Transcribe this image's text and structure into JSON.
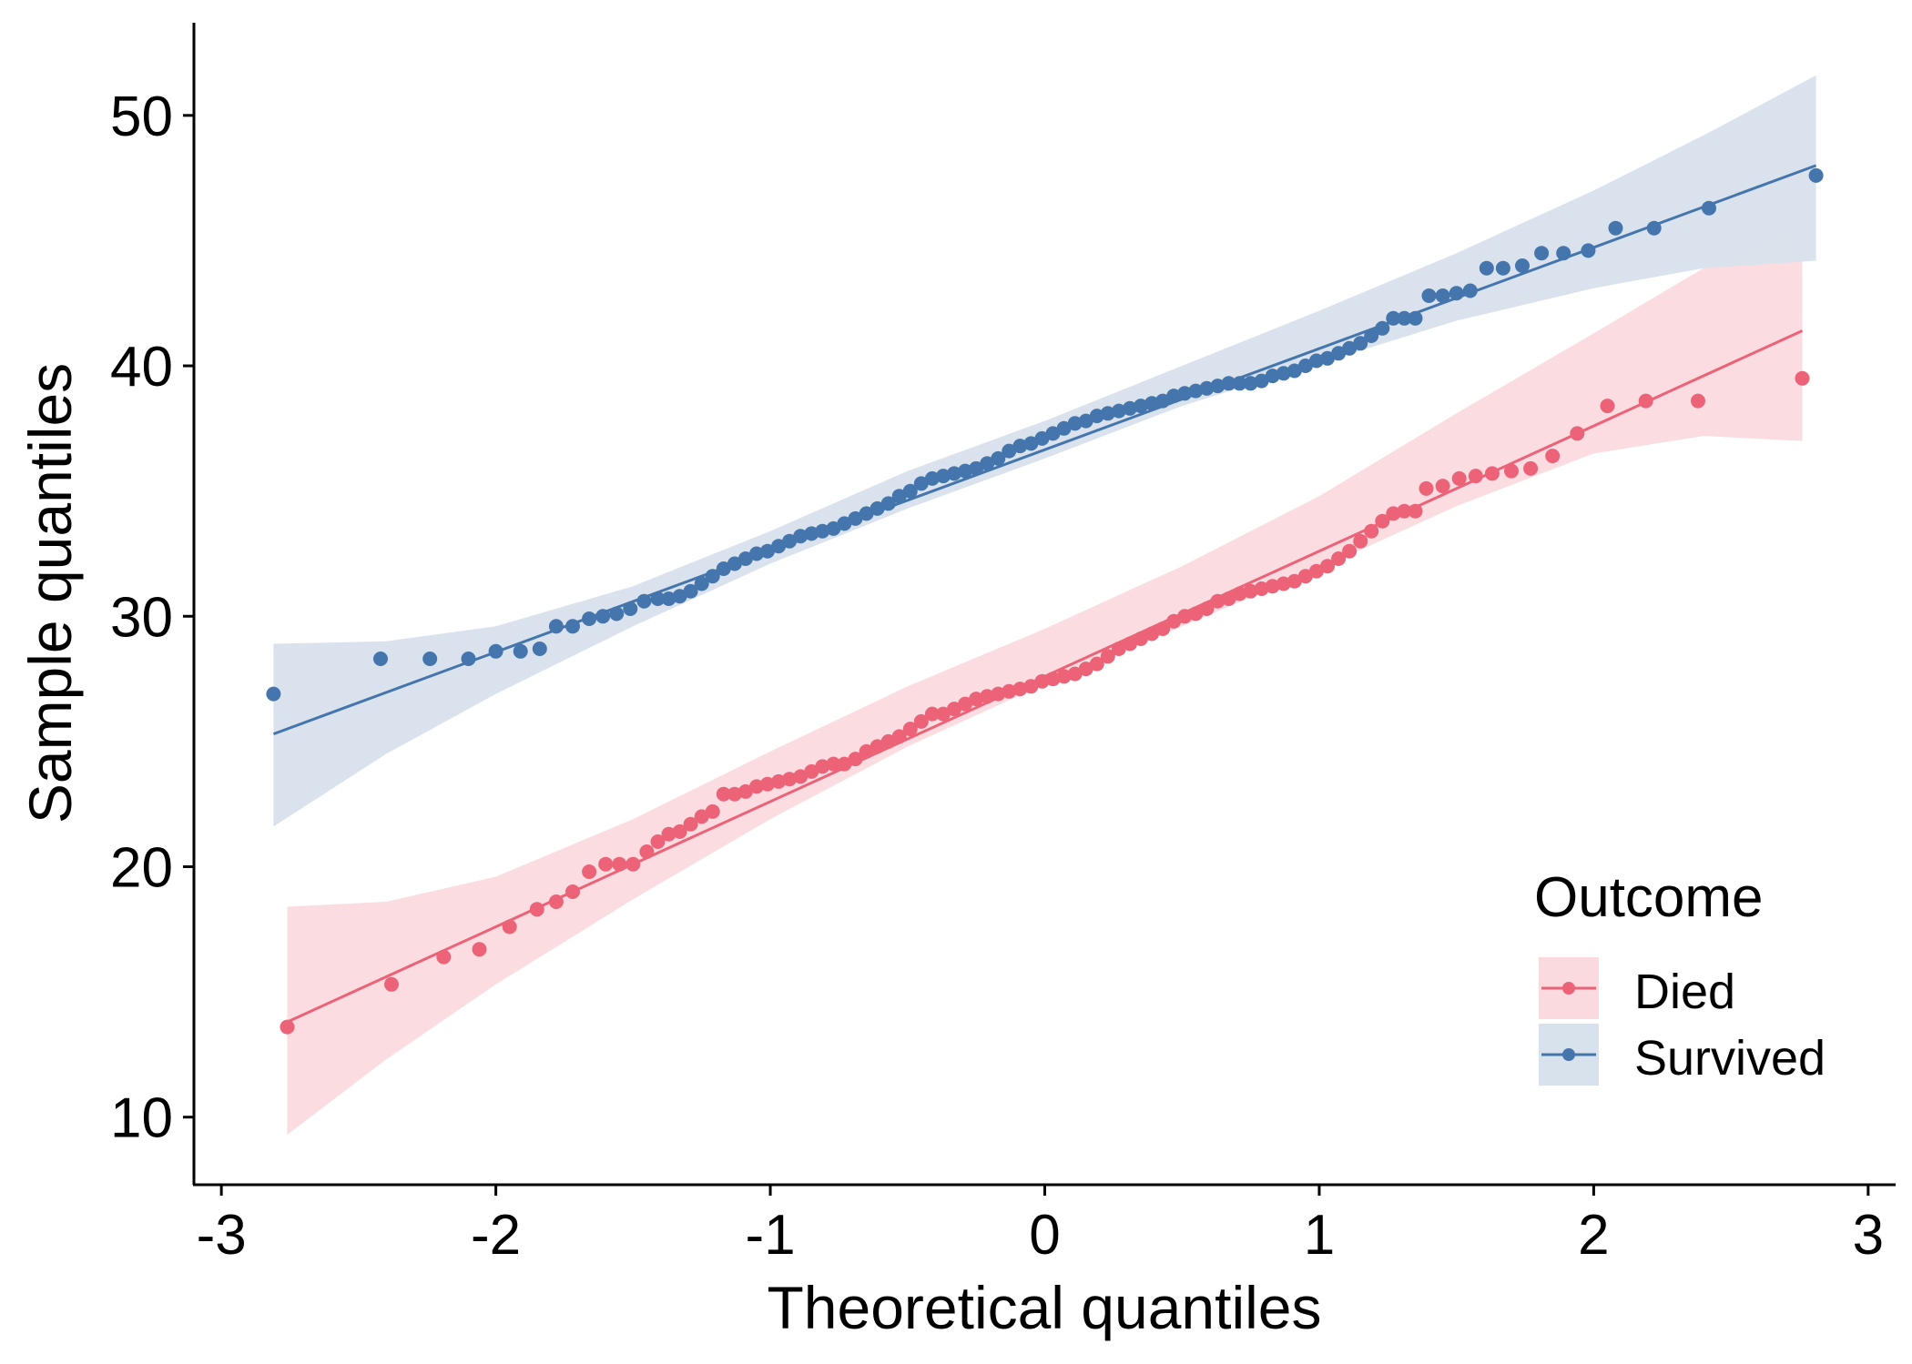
{
  "colors": {
    "died": "#EC6378",
    "died_band": "#FADADF",
    "survived": "#4575AD",
    "survived_band": "#D8E2EC",
    "axis": "#000000"
  },
  "chart_data": {
    "type": "scatter",
    "subtype": "qq-plot with reference lines and confidence bands",
    "xlabel": "Theoretical quantiles",
    "ylabel": "Sample quantiles",
    "xlim": [
      -3.1,
      3.1
    ],
    "ylim": [
      7.3,
      53.7
    ],
    "xticks": [
      -3,
      -2,
      -1,
      0,
      1,
      2,
      3
    ],
    "xtick_labels": [
      "-3",
      "-2",
      "-1",
      "0",
      "1",
      "2",
      "3"
    ],
    "yticks": [
      10,
      20,
      30,
      40,
      50
    ],
    "ytick_labels": [
      "10",
      "20",
      "30",
      "40",
      "50"
    ],
    "grid": false,
    "legend": {
      "title": "Outcome",
      "position": "bottom-right",
      "entries": [
        "Died",
        "Survived"
      ]
    },
    "series": [
      {
        "name": "Died",
        "color": "#EC6378",
        "points": [
          [
            -2.76,
            13.6
          ],
          [
            -2.38,
            15.3
          ],
          [
            -2.19,
            16.4
          ],
          [
            -2.06,
            16.7
          ],
          [
            -1.95,
            17.6
          ],
          [
            -1.85,
            18.3
          ],
          [
            -1.78,
            18.6
          ],
          [
            -1.72,
            19.0
          ],
          [
            -1.66,
            19.8
          ],
          [
            -1.6,
            20.1
          ],
          [
            -1.55,
            20.1
          ],
          [
            -1.5,
            20.1
          ],
          [
            -1.45,
            20.6
          ],
          [
            -1.41,
            21.0
          ],
          [
            -1.37,
            21.3
          ],
          [
            -1.33,
            21.4
          ],
          [
            -1.29,
            21.7
          ],
          [
            -1.25,
            22.0
          ],
          [
            -1.21,
            22.2
          ],
          [
            -1.17,
            22.9
          ],
          [
            -1.13,
            22.9
          ],
          [
            -1.09,
            23.0
          ],
          [
            -1.05,
            23.2
          ],
          [
            -1.01,
            23.3
          ],
          [
            -0.97,
            23.4
          ],
          [
            -0.93,
            23.5
          ],
          [
            -0.89,
            23.6
          ],
          [
            -0.85,
            23.8
          ],
          [
            -0.81,
            24.0
          ],
          [
            -0.77,
            24.1
          ],
          [
            -0.73,
            24.1
          ],
          [
            -0.69,
            24.3
          ],
          [
            -0.65,
            24.6
          ],
          [
            -0.61,
            24.8
          ],
          [
            -0.57,
            25.0
          ],
          [
            -0.53,
            25.2
          ],
          [
            -0.49,
            25.5
          ],
          [
            -0.45,
            25.8
          ],
          [
            -0.41,
            26.1
          ],
          [
            -0.37,
            26.1
          ],
          [
            -0.33,
            26.3
          ],
          [
            -0.29,
            26.5
          ],
          [
            -0.25,
            26.7
          ],
          [
            -0.21,
            26.8
          ],
          [
            -0.17,
            26.9
          ],
          [
            -0.13,
            27.0
          ],
          [
            -0.09,
            27.1
          ],
          [
            -0.05,
            27.2
          ],
          [
            -0.01,
            27.4
          ],
          [
            0.03,
            27.5
          ],
          [
            0.07,
            27.6
          ],
          [
            0.11,
            27.7
          ],
          [
            0.15,
            27.9
          ],
          [
            0.19,
            28.1
          ],
          [
            0.23,
            28.4
          ],
          [
            0.27,
            28.7
          ],
          [
            0.31,
            28.9
          ],
          [
            0.35,
            29.1
          ],
          [
            0.39,
            29.3
          ],
          [
            0.43,
            29.5
          ],
          [
            0.47,
            29.8
          ],
          [
            0.51,
            30.0
          ],
          [
            0.55,
            30.1
          ],
          [
            0.59,
            30.3
          ],
          [
            0.63,
            30.6
          ],
          [
            0.67,
            30.7
          ],
          [
            0.71,
            30.9
          ],
          [
            0.75,
            31.0
          ],
          [
            0.79,
            31.1
          ],
          [
            0.83,
            31.2
          ],
          [
            0.87,
            31.3
          ],
          [
            0.91,
            31.4
          ],
          [
            0.95,
            31.6
          ],
          [
            0.99,
            31.8
          ],
          [
            1.03,
            32.0
          ],
          [
            1.07,
            32.3
          ],
          [
            1.11,
            32.6
          ],
          [
            1.15,
            33.0
          ],
          [
            1.19,
            33.4
          ],
          [
            1.23,
            33.8
          ],
          [
            1.27,
            34.1
          ],
          [
            1.31,
            34.2
          ],
          [
            1.35,
            34.2
          ],
          [
            1.39,
            35.1
          ],
          [
            1.45,
            35.2
          ],
          [
            1.51,
            35.5
          ],
          [
            1.57,
            35.6
          ],
          [
            1.63,
            35.7
          ],
          [
            1.7,
            35.8
          ],
          [
            1.77,
            35.9
          ],
          [
            1.85,
            36.4
          ],
          [
            1.94,
            37.3
          ],
          [
            2.05,
            38.4
          ],
          [
            2.19,
            38.6
          ],
          [
            2.38,
            38.6
          ],
          [
            2.76,
            39.5
          ]
        ],
        "line": {
          "x": [
            -2.76,
            2.76
          ],
          "y": [
            13.8,
            41.4
          ]
        },
        "band": {
          "x": [
            -2.76,
            -2.4,
            -2.0,
            -1.5,
            -1.0,
            -0.5,
            0.0,
            0.5,
            1.0,
            1.5,
            2.0,
            2.4,
            2.76
          ],
          "lower": [
            9.3,
            12.3,
            15.3,
            18.7,
            21.9,
            24.8,
            27.3,
            29.6,
            31.9,
            34.4,
            36.5,
            37.2,
            37.0
          ],
          "upper": [
            18.4,
            18.6,
            19.6,
            21.9,
            24.6,
            27.2,
            29.5,
            32.0,
            34.8,
            38.1,
            41.3,
            43.9,
            45.9
          ]
        }
      },
      {
        "name": "Survived",
        "color": "#4575AD",
        "points": [
          [
            -2.81,
            26.9
          ],
          [
            -2.42,
            28.3
          ],
          [
            -2.24,
            28.3
          ],
          [
            -2.1,
            28.3
          ],
          [
            -2.0,
            28.6
          ],
          [
            -1.91,
            28.6
          ],
          [
            -1.84,
            28.7
          ],
          [
            -1.78,
            29.6
          ],
          [
            -1.72,
            29.6
          ],
          [
            -1.66,
            29.9
          ],
          [
            -1.61,
            30.0
          ],
          [
            -1.56,
            30.1
          ],
          [
            -1.51,
            30.3
          ],
          [
            -1.46,
            30.6
          ],
          [
            -1.41,
            30.7
          ],
          [
            -1.37,
            30.7
          ],
          [
            -1.33,
            30.8
          ],
          [
            -1.29,
            31.0
          ],
          [
            -1.25,
            31.3
          ],
          [
            -1.21,
            31.6
          ],
          [
            -1.17,
            31.9
          ],
          [
            -1.13,
            32.1
          ],
          [
            -1.09,
            32.3
          ],
          [
            -1.05,
            32.5
          ],
          [
            -1.01,
            32.6
          ],
          [
            -0.97,
            32.8
          ],
          [
            -0.93,
            33.0
          ],
          [
            -0.89,
            33.2
          ],
          [
            -0.85,
            33.3
          ],
          [
            -0.81,
            33.4
          ],
          [
            -0.77,
            33.5
          ],
          [
            -0.73,
            33.7
          ],
          [
            -0.69,
            33.9
          ],
          [
            -0.65,
            34.1
          ],
          [
            -0.61,
            34.3
          ],
          [
            -0.57,
            34.5
          ],
          [
            -0.53,
            34.8
          ],
          [
            -0.49,
            35.0
          ],
          [
            -0.45,
            35.3
          ],
          [
            -0.41,
            35.5
          ],
          [
            -0.37,
            35.6
          ],
          [
            -0.33,
            35.7
          ],
          [
            -0.29,
            35.8
          ],
          [
            -0.25,
            35.9
          ],
          [
            -0.21,
            36.1
          ],
          [
            -0.17,
            36.3
          ],
          [
            -0.13,
            36.6
          ],
          [
            -0.09,
            36.8
          ],
          [
            -0.05,
            36.9
          ],
          [
            -0.01,
            37.1
          ],
          [
            0.03,
            37.3
          ],
          [
            0.07,
            37.5
          ],
          [
            0.11,
            37.7
          ],
          [
            0.15,
            37.8
          ],
          [
            0.19,
            38.0
          ],
          [
            0.23,
            38.1
          ],
          [
            0.27,
            38.2
          ],
          [
            0.31,
            38.3
          ],
          [
            0.35,
            38.4
          ],
          [
            0.39,
            38.5
          ],
          [
            0.43,
            38.6
          ],
          [
            0.47,
            38.8
          ],
          [
            0.51,
            38.9
          ],
          [
            0.55,
            39.0
          ],
          [
            0.59,
            39.1
          ],
          [
            0.63,
            39.2
          ],
          [
            0.67,
            39.3
          ],
          [
            0.71,
            39.3
          ],
          [
            0.75,
            39.3
          ],
          [
            0.79,
            39.4
          ],
          [
            0.83,
            39.6
          ],
          [
            0.87,
            39.7
          ],
          [
            0.91,
            39.8
          ],
          [
            0.95,
            40.0
          ],
          [
            0.99,
            40.2
          ],
          [
            1.03,
            40.3
          ],
          [
            1.07,
            40.5
          ],
          [
            1.11,
            40.7
          ],
          [
            1.15,
            40.9
          ],
          [
            1.19,
            41.2
          ],
          [
            1.23,
            41.5
          ],
          [
            1.27,
            41.9
          ],
          [
            1.31,
            41.9
          ],
          [
            1.35,
            41.9
          ],
          [
            1.4,
            42.8
          ],
          [
            1.45,
            42.8
          ],
          [
            1.5,
            42.9
          ],
          [
            1.55,
            43.0
          ],
          [
            1.61,
            43.9
          ],
          [
            1.67,
            43.9
          ],
          [
            1.74,
            44.0
          ],
          [
            1.81,
            44.5
          ],
          [
            1.89,
            44.5
          ],
          [
            1.98,
            44.6
          ],
          [
            2.08,
            45.5
          ],
          [
            2.22,
            45.5
          ],
          [
            2.42,
            46.3
          ],
          [
            2.81,
            47.6
          ]
        ],
        "line": {
          "x": [
            -2.81,
            2.81
          ],
          "y": [
            25.3,
            48.0
          ]
        },
        "band": {
          "x": [
            -2.81,
            -2.4,
            -2.0,
            -1.5,
            -1.0,
            -0.5,
            0.0,
            0.5,
            1.0,
            1.5,
            2.0,
            2.4,
            2.81
          ],
          "lower": [
            21.6,
            24.5,
            26.9,
            29.6,
            32.1,
            34.3,
            36.3,
            38.4,
            40.1,
            41.8,
            43.1,
            43.9,
            44.2
          ],
          "upper": [
            28.9,
            29.0,
            29.6,
            31.2,
            33.4,
            35.8,
            37.8,
            40.0,
            42.2,
            44.5,
            47.0,
            49.2,
            51.6
          ]
        }
      }
    ]
  }
}
